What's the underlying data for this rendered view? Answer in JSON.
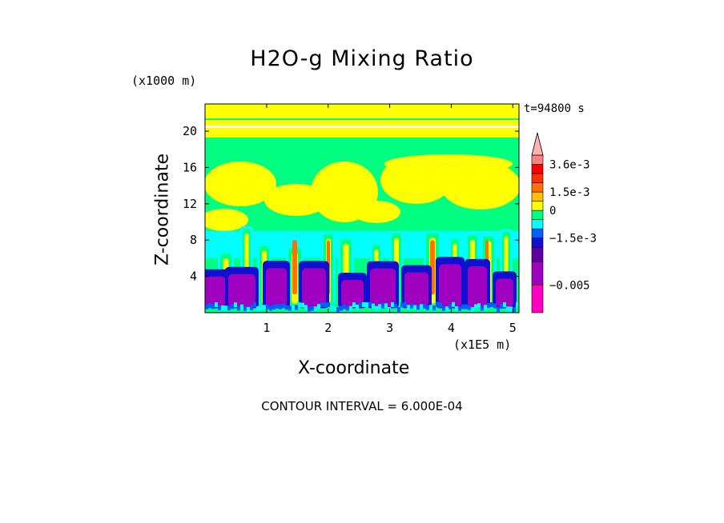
{
  "title": "H2O-g Mixing Ratio",
  "time_label": "t=94800 s",
  "footer": "CONTOUR INTERVAL = 6.000E-04",
  "chart_data": {
    "type": "heatmap",
    "title": "H2O-g Mixing Ratio",
    "xlabel": "X-coordinate",
    "ylabel": "Z-coordinate",
    "x_unit": "(x1E5 m)",
    "y_unit": "(x1000 m)",
    "x_ticks": [
      1,
      2,
      3,
      4,
      5
    ],
    "y_ticks": [
      4,
      8,
      12,
      16,
      20
    ],
    "xlim": [
      0,
      5.1
    ],
    "ylim": [
      0,
      23
    ],
    "contour_interval": "6.000E-04",
    "colorbar": {
      "labels": [
        {
          "text": "3.6e-3",
          "value": 0.0036
        },
        {
          "text": "1.5e-3",
          "value": 0.0015
        },
        {
          "text": "0",
          "value": 0
        },
        {
          "text": "−1.5e-3",
          "value": -0.0015
        },
        {
          "text": "−0.005",
          "value": -0.005
        }
      ],
      "colors": [
        "#ff00c0",
        "#a000c0",
        "#6000a0",
        "#1010d0",
        "#0060ff",
        "#00ffff",
        "#00ff80",
        "#ffff00",
        "#ffc000",
        "#ff7000",
        "#ff3000",
        "#ff0000",
        "#ff8080",
        "#ffb0b0"
      ],
      "extend": "max"
    },
    "layers": [
      {
        "range": "z 0 to 0.5",
        "level": "near zero / cyan noise"
      },
      {
        "range": "z 0.5 to 6",
        "level": "-0.005 to -0.003 (purple and blue cells)"
      },
      {
        "range": "z 6 to 9",
        "level": "-0.001 (cyan band)"
      },
      {
        "range": "z 9 to 20",
        "level": "0 to 0.0006 (yellow / green)"
      },
      {
        "range": "z 20 to 23",
        "level": "0 to 0.0006 (yellow / green stripes)"
      }
    ]
  }
}
